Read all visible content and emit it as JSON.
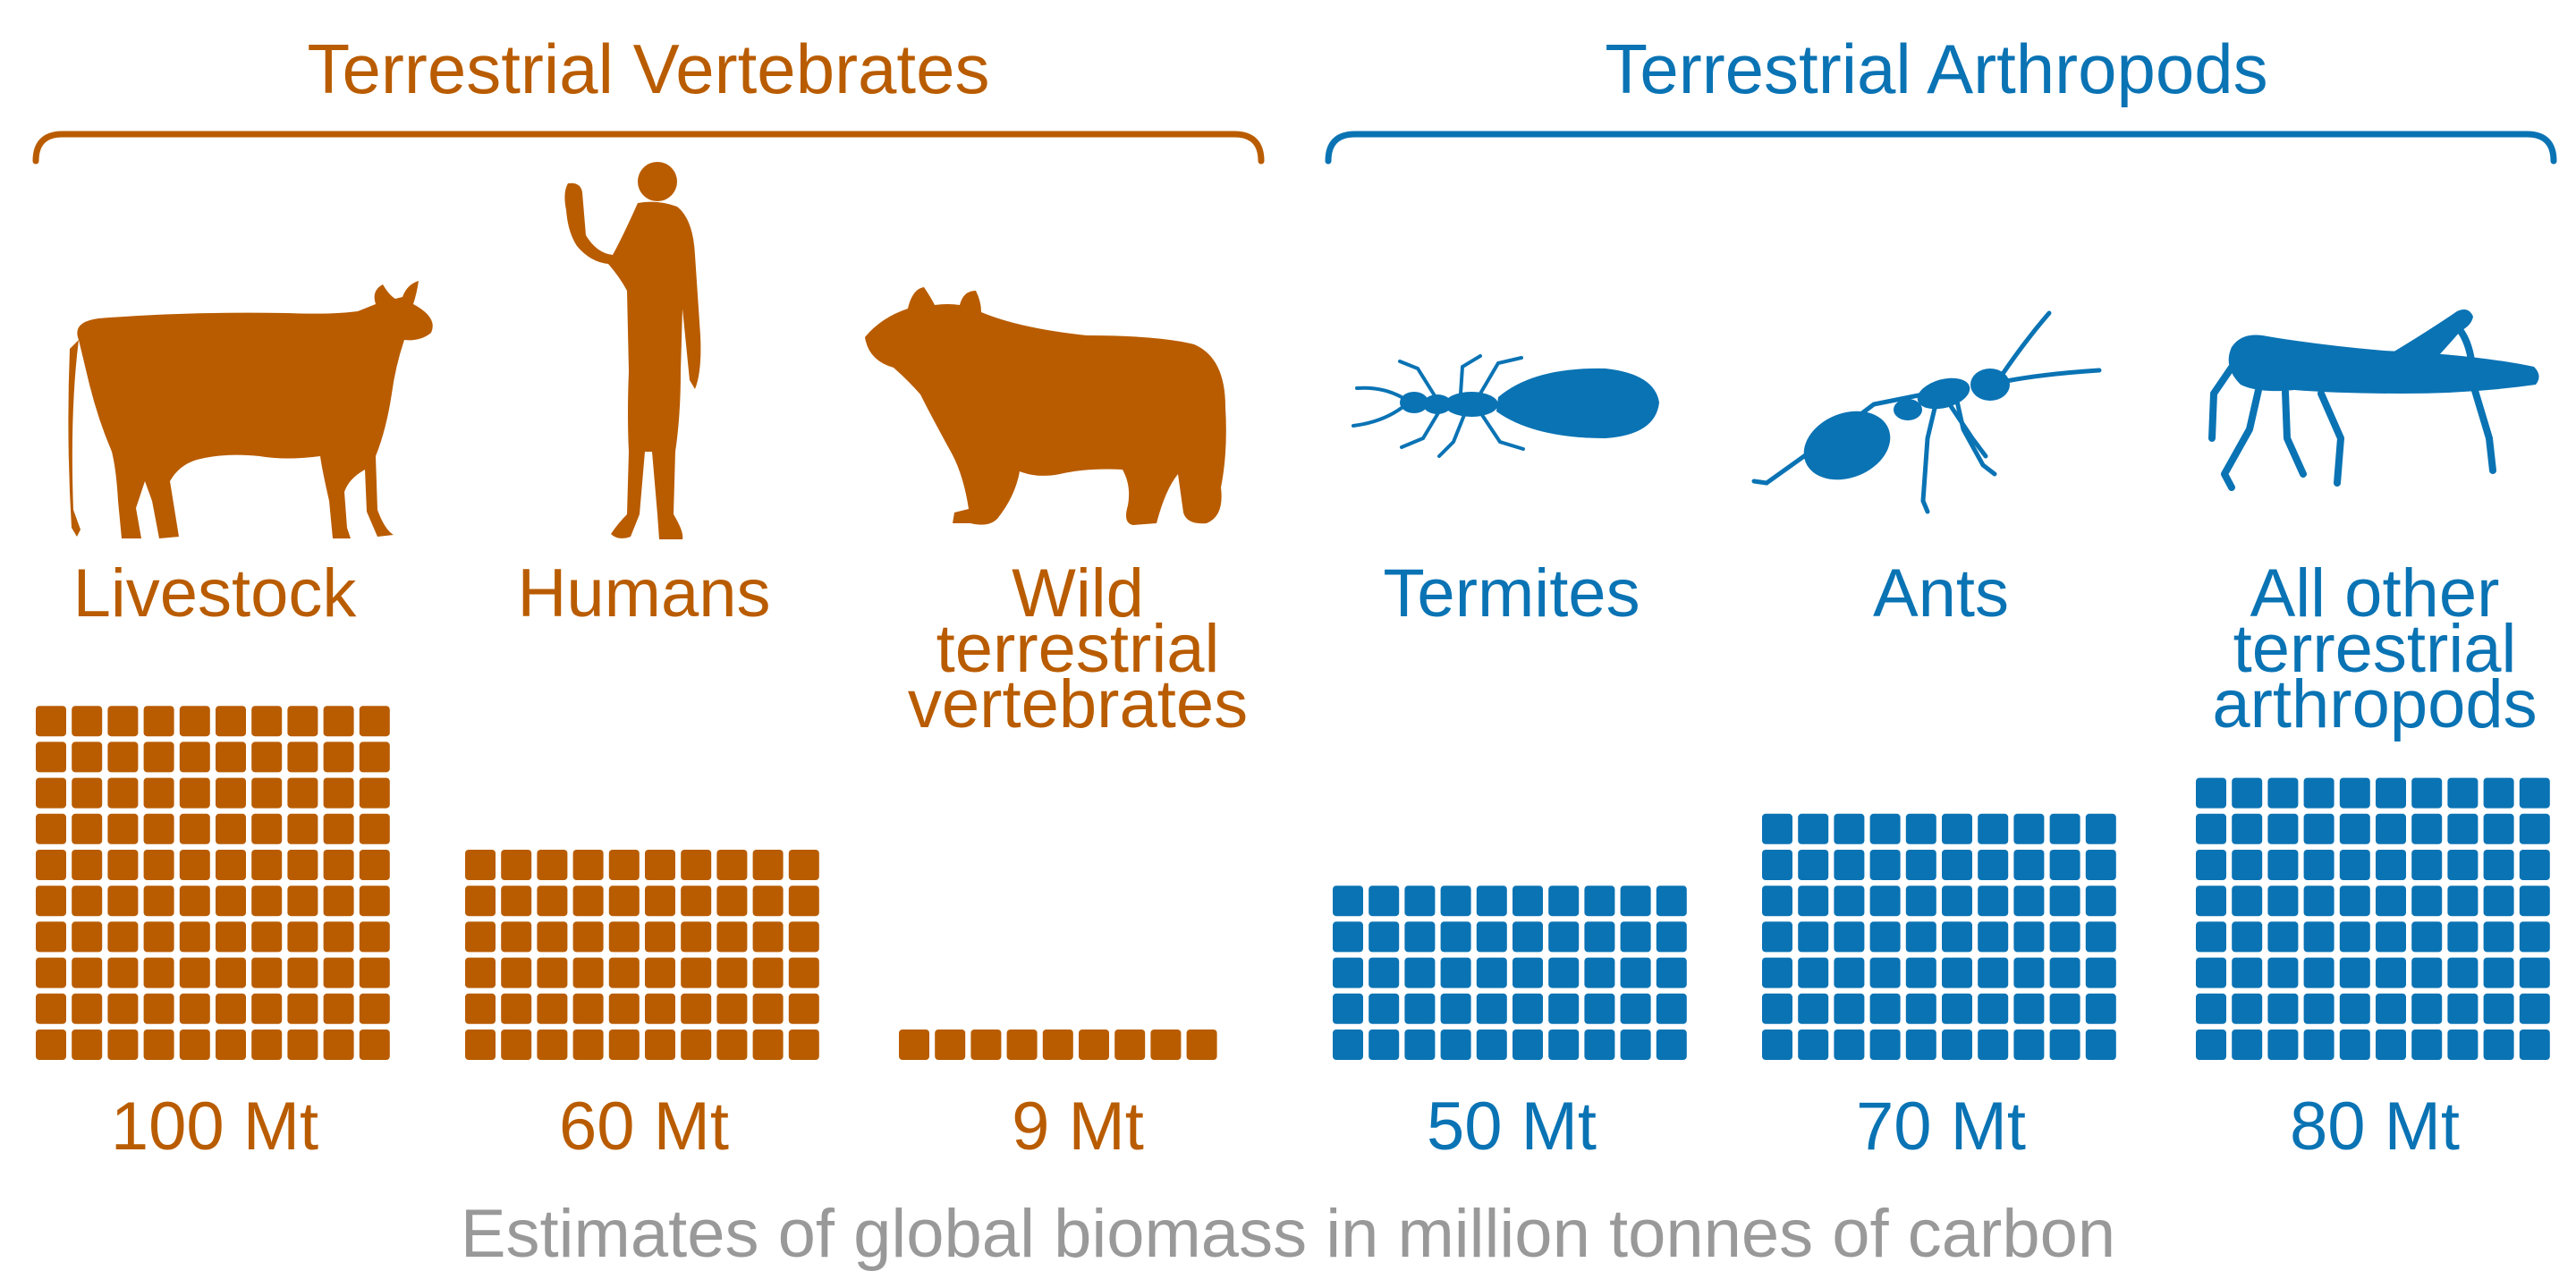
{
  "colors": {
    "vertebrates": "#b95c00",
    "arthropods": "#0a73b4",
    "caption": "#999999"
  },
  "groups": [
    {
      "title": "Terrestrial Vertebrates",
      "color_key": "vertebrates"
    },
    {
      "title": "Terrestrial Arthropods",
      "color_key": "arthropods"
    }
  ],
  "icons": [
    "cow-icon",
    "human-icon",
    "bear-icon",
    "termite-icon",
    "ant-icon",
    "grasshopper-icon"
  ],
  "caption": "Estimates of global biomass in million tonnes of carbon",
  "chart_data": {
    "type": "waffle",
    "unit": "Mt",
    "unit_per_square": 1,
    "columns": 10,
    "categories": [
      "Livestock",
      "Humans",
      "Wild terrestrial vertebrates",
      "Termites",
      "Ants",
      "All other terrestrial arthropods"
    ],
    "label_lines": [
      [
        "Livestock"
      ],
      [
        "Humans"
      ],
      [
        "Wild",
        "terrestrial",
        "vertebrates"
      ],
      [
        "Termites"
      ],
      [
        "Ants"
      ],
      [
        "All other",
        "terrestrial",
        "arthropods"
      ]
    ],
    "values": [
      100,
      60,
      9,
      50,
      70,
      80
    ],
    "value_labels": [
      "100 Mt",
      "60 Mt",
      "9 Mt",
      "50 Mt",
      "70 Mt",
      "80 Mt"
    ],
    "group_of_category": [
      0,
      0,
      0,
      1,
      1,
      1
    ]
  }
}
